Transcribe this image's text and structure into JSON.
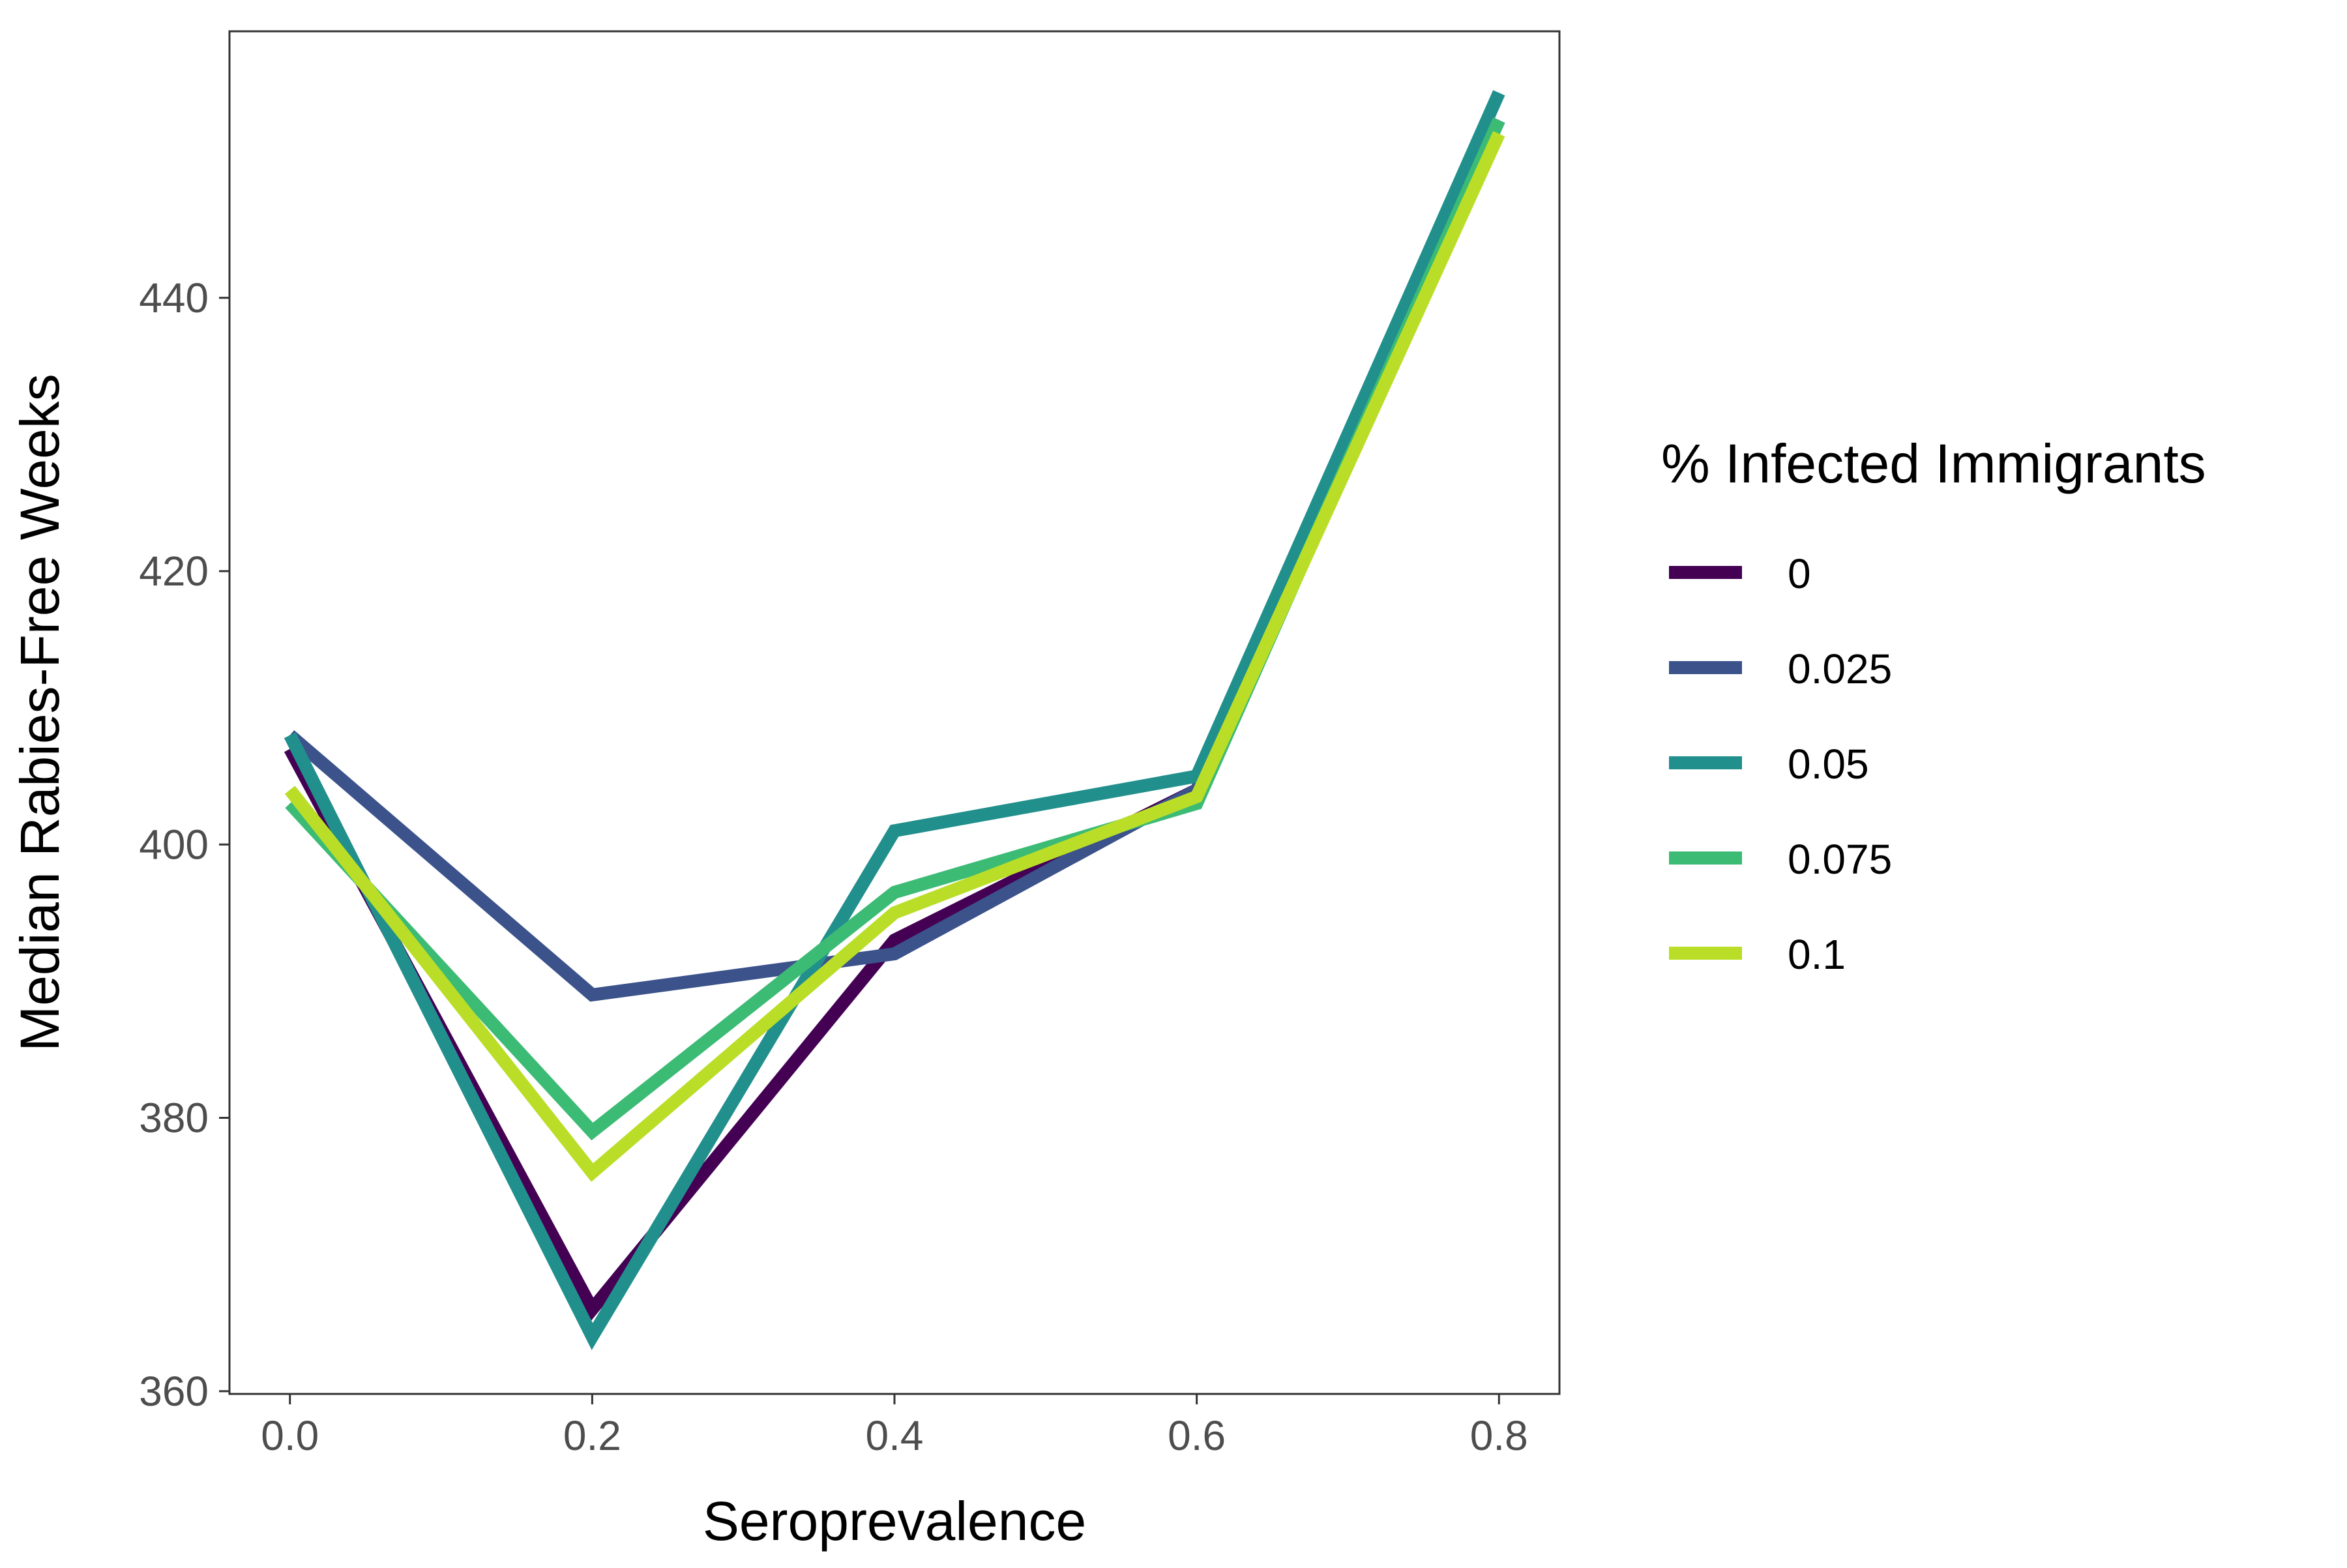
{
  "chart_data": {
    "type": "line",
    "xlabel": "Seroprevalence",
    "ylabel": "Median Rabies-Free Weeks",
    "x": [
      0.0,
      0.2,
      0.4,
      0.6,
      0.8
    ],
    "xticks": [
      "0.0",
      "0.2",
      "0.4",
      "0.6",
      "0.8"
    ],
    "yticks": [
      "360",
      "380",
      "400",
      "420",
      "440"
    ],
    "xlim": [
      -0.04,
      0.84
    ],
    "ylim": [
      359.8,
      459.5
    ],
    "grid": false,
    "legend": {
      "title": "% Infected Immigrants",
      "placement": "right"
    },
    "series": [
      {
        "name": "0",
        "color": "#440154",
        "values": [
          407,
          366,
          393,
          404,
          453
        ]
      },
      {
        "name": "0.025",
        "color": "#3B528B",
        "values": [
          408,
          389,
          392,
          404,
          453
        ]
      },
      {
        "name": "0.05",
        "color": "#21908C",
        "values": [
          408,
          364,
          401,
          405,
          455
        ]
      },
      {
        "name": "0.075",
        "color": "#3CBB75",
        "values": [
          403,
          379,
          396.5,
          403,
          453
        ]
      },
      {
        "name": "0.1",
        "color": "#BADE28",
        "values": [
          404,
          376,
          395,
          403.5,
          452
        ]
      }
    ]
  }
}
